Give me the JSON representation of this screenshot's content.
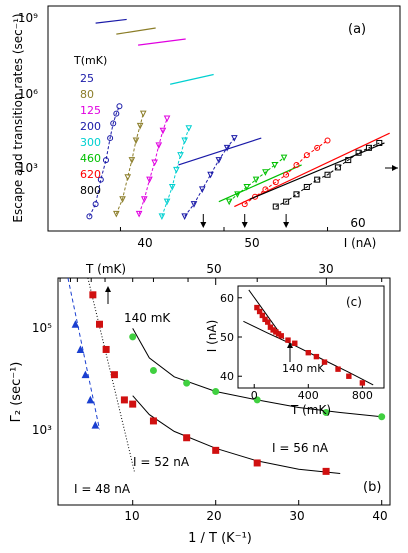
{
  "chart_data": [
    {
      "panel": "(a)",
      "type": "scatter",
      "ylabel": "Escape and transition rates (sec⁻¹)",
      "xlabel": "I (nA)",
      "x_ticks": [
        40,
        50,
        60
      ],
      "y_ticks": [
        "10⁹",
        "10⁶",
        "10³"
      ],
      "ylim_log10": [
        0.8,
        10
      ],
      "xlim": [
        33,
        67
      ],
      "legend_title": "T(mK)",
      "legend_placement": "left",
      "arrows_x": [
        48,
        52,
        56
      ],
      "series": [
        {
          "name": "25",
          "color": "#1a1aa8",
          "marker": "circle",
          "points": [
            [
              37,
              1.4
            ],
            [
              37.6,
              1.9
            ],
            [
              38.1,
              2.9
            ],
            [
              38.6,
              3.7
            ],
            [
              39.0,
              4.6
            ],
            [
              39.3,
              5.2
            ],
            [
              39.6,
              5.6
            ],
            [
              39.9,
              5.9
            ]
          ],
          "line": [
            [
              37.6,
              9.3
            ],
            [
              40.6,
              9.45
            ]
          ]
        },
        {
          "name": "80",
          "color": "#8b7d28",
          "marker": "tri-down",
          "points": [
            [
              39.6,
              1.5
            ],
            [
              40.2,
              2.1
            ],
            [
              40.7,
              3.0
            ],
            [
              41.1,
              3.7
            ],
            [
              41.5,
              4.5
            ],
            [
              41.9,
              5.1
            ],
            [
              42.2,
              5.6
            ]
          ],
          "line": [
            [
              39.6,
              8.85
            ],
            [
              43.4,
              9.1
            ]
          ]
        },
        {
          "name": "125",
          "color": "#e000e0",
          "marker": "tri-down",
          "points": [
            [
              41.8,
              1.5
            ],
            [
              42.3,
              2.1
            ],
            [
              42.8,
              2.9
            ],
            [
              43.3,
              3.6
            ],
            [
              43.7,
              4.3
            ],
            [
              44.1,
              4.9
            ],
            [
              44.5,
              5.4
            ]
          ],
          "line": [
            [
              41.7,
              8.4
            ],
            [
              46.3,
              8.65
            ]
          ]
        },
        {
          "name": "200",
          "color": "#1a1aa8",
          "marker": "tri-down",
          "points": [
            [
              46.2,
              1.4
            ],
            [
              47.1,
              1.9
            ],
            [
              47.9,
              2.5
            ],
            [
              48.7,
              3.1
            ],
            [
              49.5,
              3.7
            ],
            [
              50.3,
              4.2
            ],
            [
              51.0,
              4.6
            ]
          ],
          "line": [
            [
              45.6,
              3.5
            ],
            [
              53.6,
              4.6
            ]
          ]
        },
        {
          "name": "300",
          "color": "#00d0d0",
          "marker": "tri-down",
          "points": [
            [
              44.0,
              1.4
            ],
            [
              44.5,
              2.0
            ],
            [
              45.0,
              2.6
            ],
            [
              45.4,
              3.3
            ],
            [
              45.8,
              3.9
            ],
            [
              46.2,
              4.5
            ],
            [
              46.6,
              5.0
            ]
          ],
          "line": [
            [
              44.8,
              6.8
            ],
            [
              49.0,
              7.2
            ]
          ]
        },
        {
          "name": "460",
          "color": "#00c000",
          "marker": "tri-down",
          "points": [
            [
              50.5,
              2.0
            ],
            [
              51.3,
              2.3
            ],
            [
              52.2,
              2.6
            ],
            [
              53.1,
              2.9
            ],
            [
              54.0,
              3.2
            ],
            [
              54.9,
              3.5
            ],
            [
              55.8,
              3.8
            ]
          ],
          "line": [
            [
              49.5,
              2.0
            ],
            [
              57.5,
              3.5
            ]
          ]
        },
        {
          "name": "620",
          "color": "#ff0000",
          "marker": "circle",
          "points": [
            [
              52.0,
              1.9
            ],
            [
              53.0,
              2.2
            ],
            [
              54.0,
              2.5
            ],
            [
              55.0,
              2.8
            ],
            [
              56.0,
              3.1
            ],
            [
              57.0,
              3.5
            ],
            [
              58.0,
              3.9
            ],
            [
              59.0,
              4.2
            ],
            [
              60.0,
              4.5
            ]
          ],
          "line": [
            [
              51.0,
              1.8
            ],
            [
              66.0,
              4.8
            ]
          ]
        },
        {
          "name": "800",
          "color": "#000000",
          "marker": "square",
          "points": [
            [
              55.0,
              1.8
            ],
            [
              56.0,
              2.0
            ],
            [
              57.0,
              2.3
            ],
            [
              58.0,
              2.6
            ],
            [
              59.0,
              2.9
            ],
            [
              60.0,
              3.1
            ],
            [
              61.0,
              3.4
            ],
            [
              62.0,
              3.7
            ],
            [
              63.0,
              4.0
            ],
            [
              64.0,
              4.2
            ],
            [
              65.0,
              4.4
            ]
          ],
          "line": [
            [
              52.5,
              2.1
            ],
            [
              65.5,
              4.4
            ]
          ]
        }
      ]
    },
    {
      "panel": "(b)",
      "type": "scatter",
      "ylabel": "Γ₂ (sec⁻¹)",
      "xlabel": "1 / T (K⁻¹)",
      "top_axis_label": "T (mK)",
      "top_ticks": [
        50,
        30
      ],
      "x_ticks": [
        10,
        20,
        30,
        40
      ],
      "y_ticks": [
        "10⁵",
        "10³"
      ],
      "xlim": [
        1,
        41
      ],
      "ylim_log10": [
        0.8,
        6.2
      ],
      "annotation": "140 mK",
      "series": [
        {
          "name": "I = 48 nA",
          "color": "#1a3fd0",
          "marker": "triangle",
          "points": [
            [
              3.1,
              5.1
            ],
            [
              3.7,
              4.5
            ],
            [
              4.3,
              3.9
            ],
            [
              4.9,
              3.3
            ],
            [
              5.5,
              2.7
            ]
          ]
        },
        {
          "name": "I = 52 nA",
          "color": "#d01010",
          "marker": "square",
          "points": [
            [
              5.2,
              5.8
            ],
            [
              6.0,
              5.1
            ],
            [
              6.8,
              4.5
            ],
            [
              7.8,
              3.9
            ],
            [
              9.0,
              3.3
            ],
            [
              10.0,
              3.2
            ],
            [
              12.5,
              2.8
            ],
            [
              16.5,
              2.4
            ],
            [
              20.0,
              2.1
            ],
            [
              25.0,
              1.8
            ],
            [
              33.3,
              1.6
            ]
          ]
        },
        {
          "name": "I = 56 nA",
          "color": "#40d040",
          "marker": "circle",
          "points": [
            [
              10.0,
              4.8
            ],
            [
              12.5,
              4.0
            ],
            [
              16.5,
              3.7
            ],
            [
              20.0,
              3.5
            ],
            [
              25.0,
              3.3
            ],
            [
              33.3,
              3.0
            ],
            [
              40.0,
              2.9
            ]
          ]
        }
      ]
    },
    {
      "panel": "(c)",
      "type": "scatter",
      "ylabel": "I (nA)",
      "xlabel": "T (mK)",
      "x_ticks": [
        0,
        400,
        800
      ],
      "y_ticks": [
        40,
        50,
        60
      ],
      "xlim": [
        -120,
        960
      ],
      "ylim": [
        37,
        63
      ],
      "annotation": "140 mK",
      "series": [
        {
          "name": "data",
          "color": "#d01010",
          "marker": "square",
          "points": [
            [
              20,
              57.5
            ],
            [
              40,
              56.5
            ],
            [
              60,
              55.5
            ],
            [
              80,
              54.5
            ],
            [
              100,
              53.8
            ],
            [
              120,
              52.5
            ],
            [
              140,
              51.8
            ],
            [
              160,
              51.3
            ],
            [
              180,
              50.8
            ],
            [
              200,
              50.3
            ],
            [
              250,
              49.2
            ],
            [
              300,
              48.4
            ],
            [
              400,
              46.0
            ],
            [
              460,
              45.0
            ],
            [
              520,
              43.6
            ],
            [
              620,
              41.8
            ],
            [
              700,
              40.0
            ],
            [
              800,
              38.3
            ]
          ]
        }
      ]
    }
  ]
}
